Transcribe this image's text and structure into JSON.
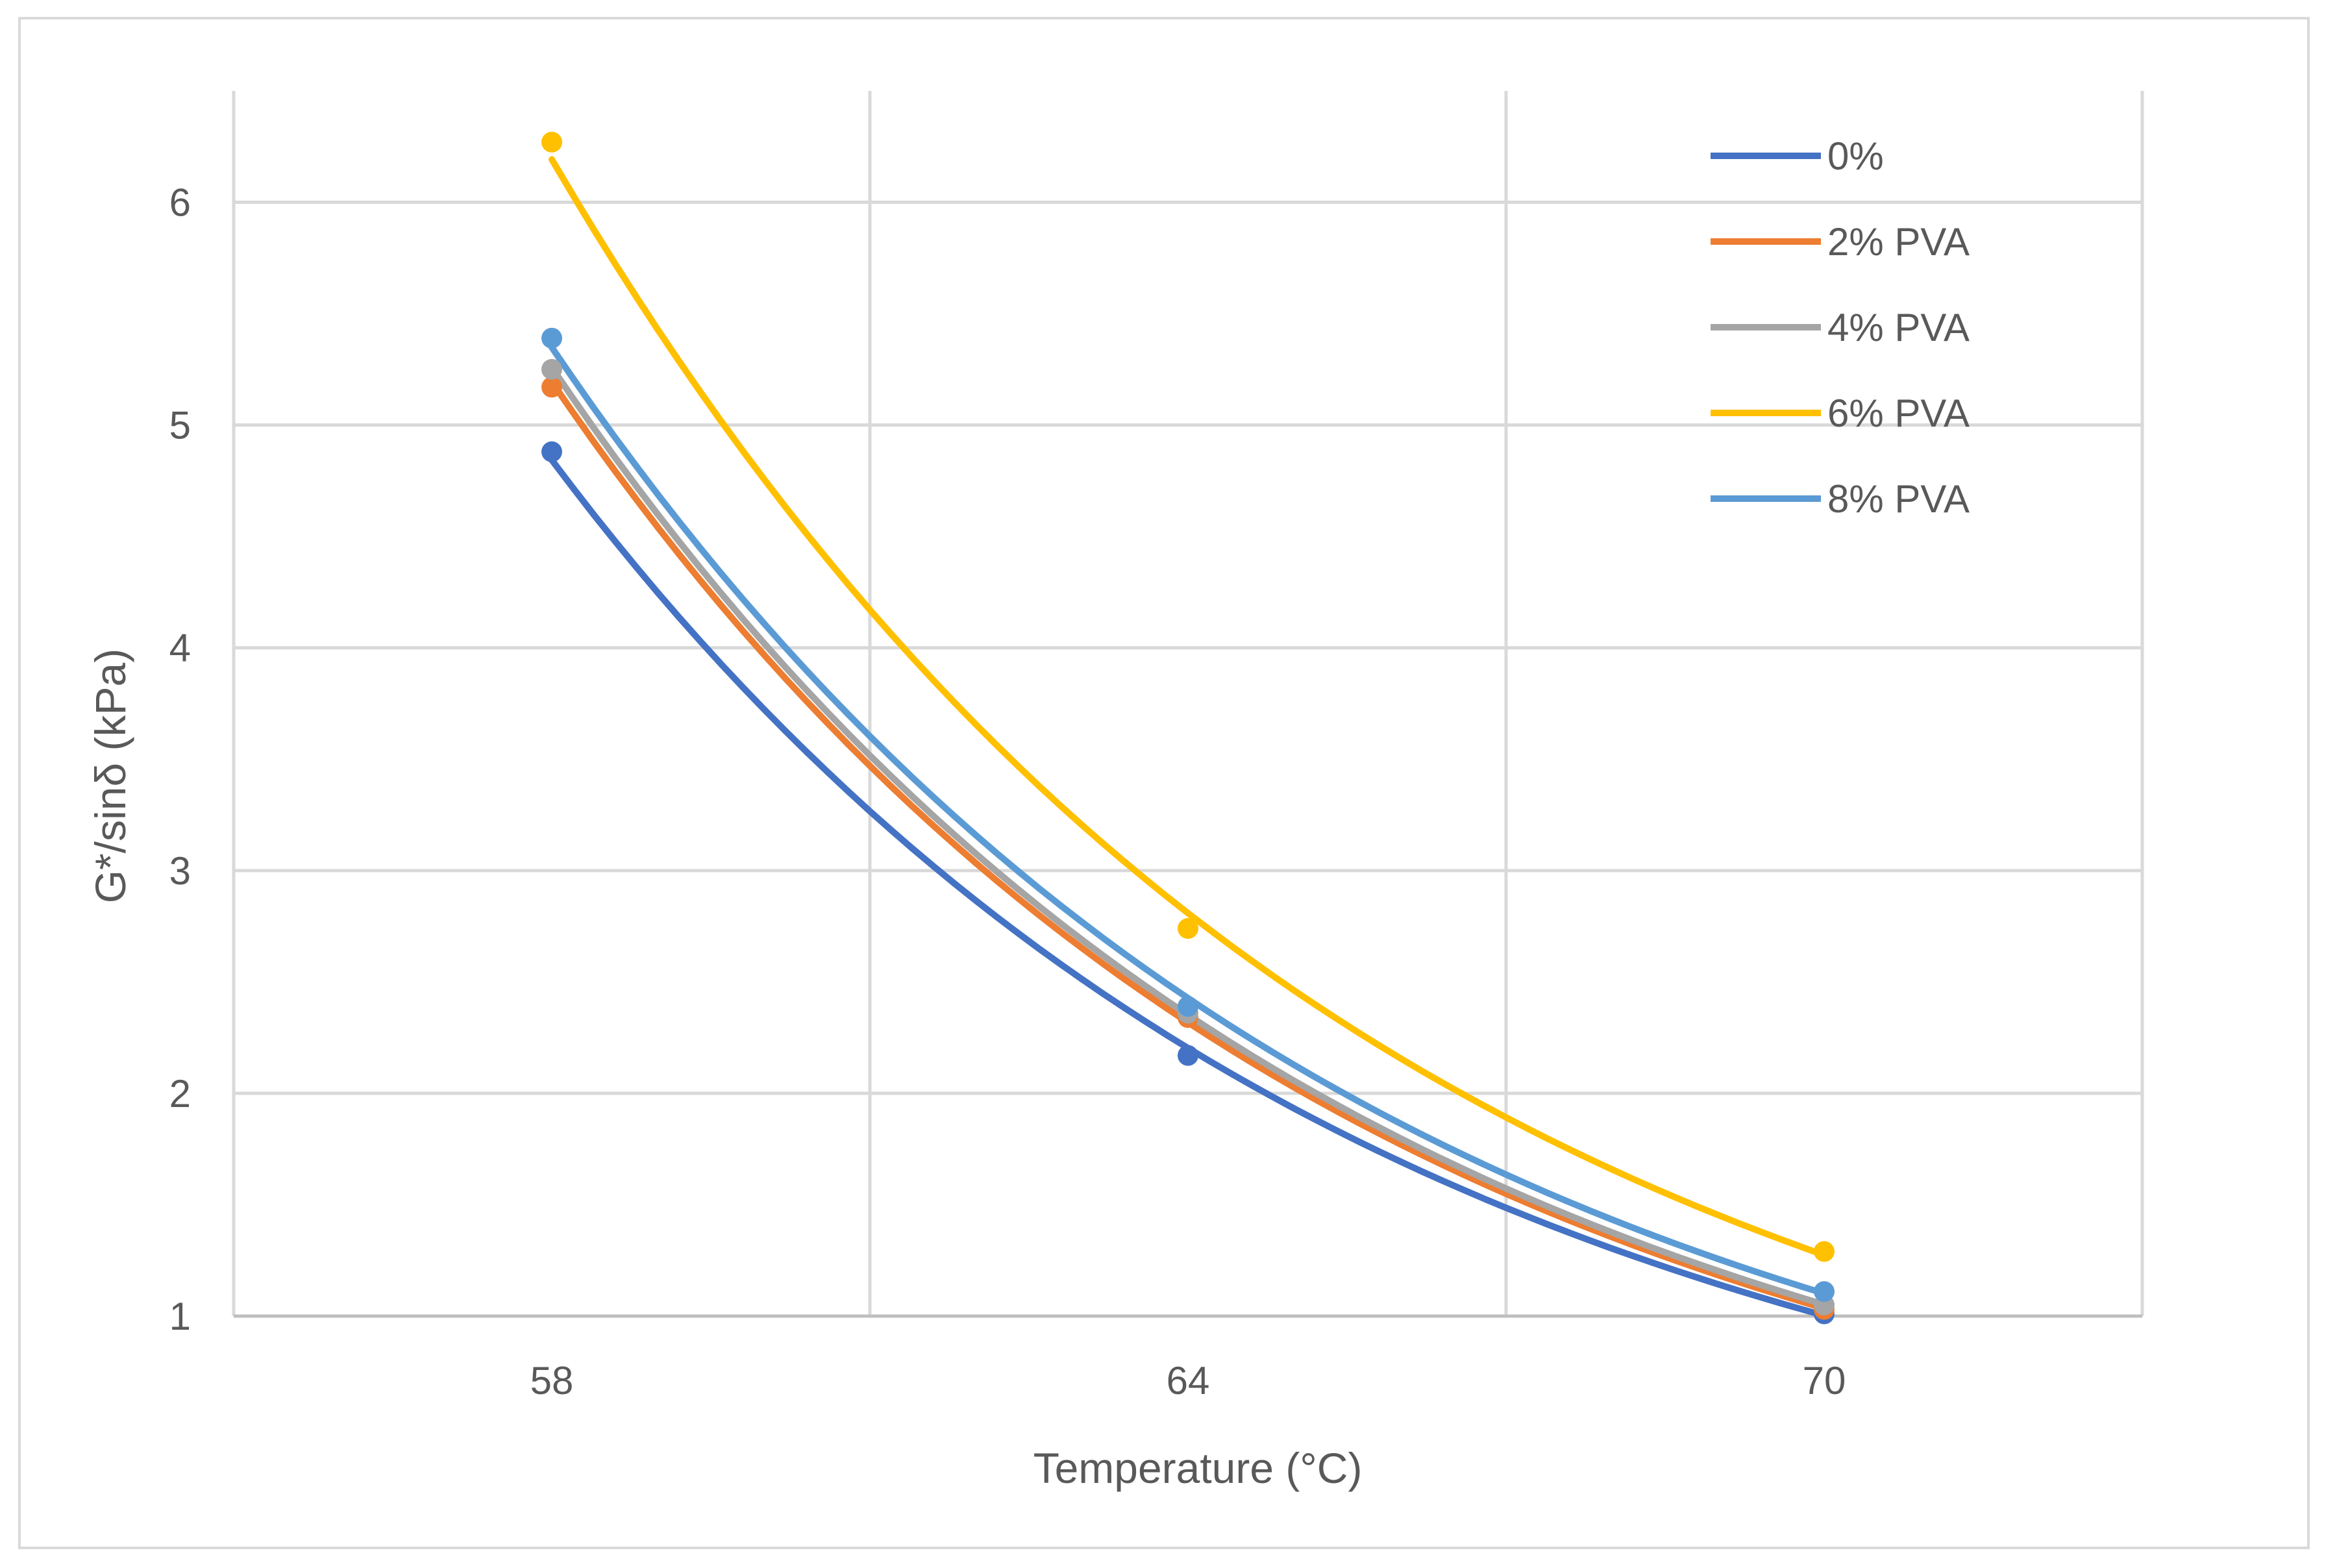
{
  "chart_data": {
    "type": "scatter",
    "title": "",
    "xlabel": "Temperature (°C)",
    "ylabel": "G*/sinδ (kPa)",
    "x_categories": [
      "58",
      "64",
      "70"
    ],
    "yticks": [
      "1",
      "2",
      "3",
      "4",
      "5",
      "6"
    ],
    "ylim": [
      1,
      6.5
    ],
    "grid": true,
    "legend_position": "top-right",
    "trendline": "exponential",
    "series": [
      {
        "name": "0%",
        "color": "#4472C4",
        "values": [
          4.88,
          2.17,
          1.01
        ]
      },
      {
        "name": "2% PVA",
        "color": "#ED7D31",
        "values": [
          5.17,
          2.34,
          1.03
        ]
      },
      {
        "name": "4% PVA",
        "color": "#A5A5A5",
        "values": [
          5.25,
          2.36,
          1.05
        ]
      },
      {
        "name": "6% PVA",
        "color": "#FFC000",
        "values": [
          6.27,
          2.74,
          1.29
        ]
      },
      {
        "name": "8% PVA",
        "color": "#5B9BD5",
        "values": [
          5.39,
          2.39,
          1.11
        ]
      }
    ]
  }
}
